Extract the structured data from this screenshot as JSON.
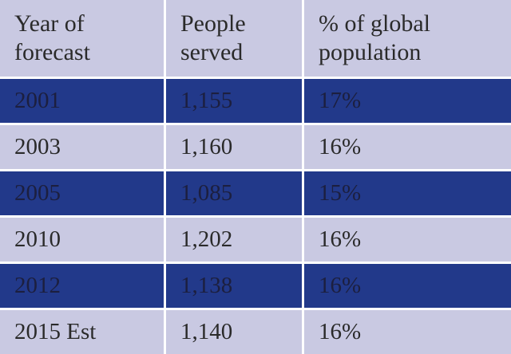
{
  "table": {
    "header": [
      "Year of forecast",
      "People served",
      "% of global population"
    ],
    "rows": [
      [
        "2001",
        "1,155",
        "17%"
      ],
      [
        "2003",
        "1,160",
        "16%"
      ],
      [
        "2005",
        "1,085",
        "15%"
      ],
      [
        "2010",
        "1,202",
        "16%"
      ],
      [
        "2012",
        "1,138",
        "16%"
      ],
      [
        "2015 Est",
        "1,140",
        "16%"
      ]
    ]
  }
}
